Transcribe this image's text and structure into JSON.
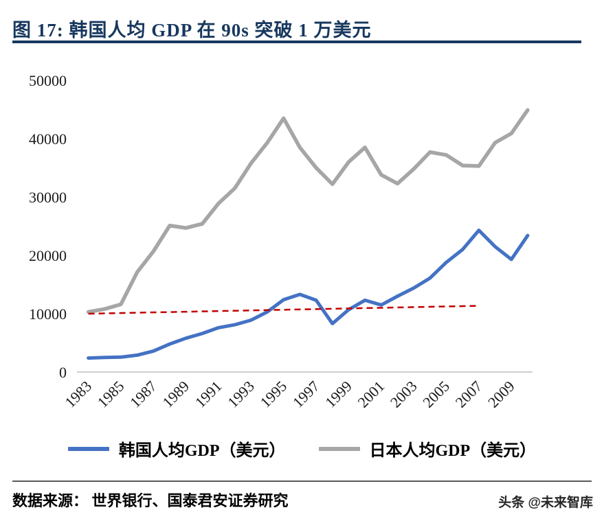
{
  "figure": {
    "title": "图 17:  韩国人均 GDP 在 90s 突破 1 万美元"
  },
  "legend": [
    {
      "label": "韩国人均GDP（美元）",
      "color": "#4472C4"
    },
    {
      "label": "日本人均GDP（美元）",
      "color": "#A6A6A6"
    }
  ],
  "footer": {
    "source": "数据来源： 世界银行、国泰君安证券研究",
    "watermark": "头条 @未来智库"
  },
  "colors": {
    "title_navy": "#17375E",
    "korea_blue": "#4472C4",
    "japan_gray": "#A6A6A6",
    "reference_red": "#C00000",
    "axis_gray": "#BFBFBF"
  },
  "chart_data": {
    "type": "line",
    "x": [
      1983,
      1984,
      1985,
      1986,
      1987,
      1988,
      1989,
      1990,
      1991,
      1992,
      1993,
      1994,
      1995,
      1996,
      1997,
      1998,
      1999,
      2000,
      2001,
      2002,
      2003,
      2004,
      2005,
      2006,
      2007,
      2008,
      2009,
      2010
    ],
    "series": [
      {
        "id": "korea-gdp-line",
        "name": "韩国人均GDP（美元）",
        "color": "#4472C4",
        "width": 5,
        "values": [
          2400,
          2500,
          2550,
          2900,
          3600,
          4800,
          5800,
          6600,
          7600,
          8100,
          8900,
          10300,
          12400,
          13300,
          12300,
          8300,
          10700,
          12300,
          11500,
          13000,
          14400,
          16100,
          18800,
          21000,
          24300,
          21500,
          19300,
          23400
        ]
      },
      {
        "id": "japan-gdp-line",
        "name": "日本人均GDP（美元）",
        "color": "#A6A6A6",
        "width": 5.5,
        "values": [
          10300,
          10800,
          11600,
          17100,
          20700,
          25100,
          24700,
          25400,
          28900,
          31500,
          35800,
          39300,
          43500,
          38500,
          35000,
          32200,
          36000,
          38500,
          33800,
          32300,
          34800,
          37700,
          37200,
          35400,
          35300,
          39300,
          40900,
          44900
        ]
      },
      {
        "id": "ten-thousand-usd-reference-line",
        "color": "#C00000",
        "width": 2.5,
        "style": "dashed",
        "x": [
          1983,
          2007
        ],
        "values": [
          10000,
          11350
        ]
      }
    ],
    "xticks": [
      1983,
      1985,
      1987,
      1989,
      1991,
      1993,
      1995,
      1997,
      1999,
      2001,
      2003,
      2005,
      2007,
      2009
    ],
    "yticks": [
      0,
      10000,
      20000,
      30000,
      40000,
      50000
    ],
    "xlim": [
      1983,
      2010
    ],
    "ylim": [
      0,
      50000
    ],
    "grid": false,
    "legend_position": "bottom"
  }
}
